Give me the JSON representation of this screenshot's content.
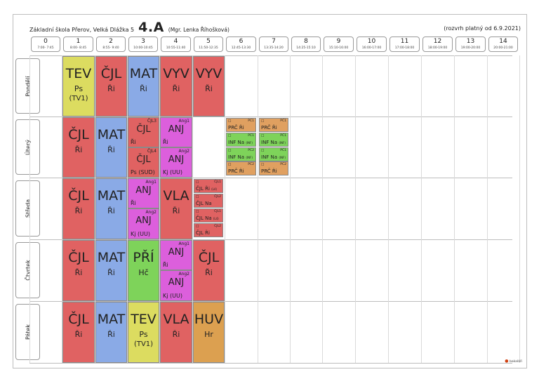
{
  "header": {
    "school": "Základní škola Přerov, Velká Dlážka 5",
    "class_name": "4.A",
    "teacher": "(Mgr. Lenka Říhošková)",
    "valid_from": "(rozvrh platný od 6.9.2021)"
  },
  "periods": [
    {
      "num": "0",
      "time": "7:00- 7:45"
    },
    {
      "num": "1",
      "time": "8:00- 8:45"
    },
    {
      "num": "2",
      "time": "8:55- 9:40"
    },
    {
      "num": "3",
      "time": "10:00-10:45"
    },
    {
      "num": "4",
      "time": "10:55-11:40"
    },
    {
      "num": "5",
      "time": "11:50-12:35"
    },
    {
      "num": "6",
      "time": "12:45-13:30"
    },
    {
      "num": "7",
      "time": "13:35-14:20"
    },
    {
      "num": "8",
      "time": "14:25-15:10"
    },
    {
      "num": "9",
      "time": "15:10-16:00"
    },
    {
      "num": "10",
      "time": "16:00-17:00"
    },
    {
      "num": "11",
      "time": "17:00-18:00"
    },
    {
      "num": "12",
      "time": "18:00-19:00"
    },
    {
      "num": "13",
      "time": "19:00-20:00"
    },
    {
      "num": "14",
      "time": "20:00-21:00"
    }
  ],
  "days": [
    "Pondělí",
    "Úterý",
    "Středa",
    "Čtvrtek",
    "Pátek"
  ],
  "colors": {
    "yellow": "#dcdc60",
    "red": "#e06262",
    "blue": "#8aaae6",
    "pink": "#dc5fdc",
    "green": "#7ed35a",
    "orange": "#e0a060",
    "tan": "#dca050"
  },
  "lessons": {
    "mon": [
      {
        "subject": "TEV",
        "teacher": "Ps",
        "room": "(TV1)"
      },
      {
        "subject": "ČJL",
        "teacher": "Ři"
      },
      {
        "subject": "MAT",
        "teacher": "Ři"
      },
      {
        "subject": "VYV",
        "teacher": "Ři"
      },
      {
        "subject": "VYV",
        "teacher": "Ři"
      }
    ],
    "tue": {
      "p1": {
        "subject": "ČJL",
        "teacher": "Ři"
      },
      "p2": {
        "subject": "MAT",
        "teacher": "Ři"
      },
      "p3a": {
        "group": "ČJL3",
        "subject": "ČJL",
        "teacher": "Ři"
      },
      "p3b": {
        "group": "ČJL4",
        "subject": "ČJL",
        "teacher": "Ps (SUD)"
      },
      "p4a": {
        "group": "Ang1",
        "subject": "ANJ",
        "teacher": "Ři"
      },
      "p4b": {
        "group": "Ang2",
        "subject": "ANJ",
        "teacher": "Kj (UU)"
      },
      "p6": [
        {
          "group": "PČ1",
          "text": "PRČ Ři",
          "note": ""
        },
        {
          "group": "PČ1",
          "text": "INF Na",
          "note": "(INF)"
        },
        {
          "group": "PČ2",
          "text": "INF Na",
          "note": "(INF)"
        },
        {
          "group": "PČ2",
          "text": "PRČ Ři",
          "note": ""
        }
      ],
      "p7": [
        {
          "group": "PČ1",
          "text": "PRČ Ři",
          "note": ""
        },
        {
          "group": "PČ1",
          "text": "INF Na",
          "note": "(INF)"
        },
        {
          "group": "PČ1",
          "text": "INF Na",
          "note": "(INF)"
        },
        {
          "group": "PČ2",
          "text": "PRČ Ři",
          "note": ""
        }
      ]
    },
    "wed": {
      "p1": {
        "subject": "ČJL",
        "teacher": "Ři"
      },
      "p2": {
        "subject": "MAT",
        "teacher": "Ři"
      },
      "p3a": {
        "group": "Ang1",
        "subject": "ANJ",
        "teacher": "Ři"
      },
      "p3b": {
        "group": "Ang2",
        "subject": "ANJ",
        "teacher": "Kj (UU)"
      },
      "p4": {
        "subject": "VLA",
        "teacher": "Ři"
      },
      "p5": [
        {
          "group": "ČJL1",
          "text": "ČJL Ři",
          "note": "(L4)"
        },
        {
          "group": "ČJL2",
          "text": "ČJL Na",
          "note": ""
        },
        {
          "group": "ČJL1",
          "text": "ČJL Na",
          "note": "(L4)"
        },
        {
          "group": "ČJL2",
          "text": "ČJL Ři",
          "note": ""
        }
      ]
    },
    "thu": {
      "p1": {
        "subject": "ČJL",
        "teacher": "Ři"
      },
      "p2": {
        "subject": "MAT",
        "teacher": "Ři"
      },
      "p3": {
        "subject": "PŘÍ",
        "teacher": "Hč"
      },
      "p4a": {
        "group": "Ang1",
        "subject": "ANJ",
        "teacher": "Ři"
      },
      "p4b": {
        "group": "Ang2",
        "subject": "ANJ",
        "teacher": "Kj (UU)"
      },
      "p5": {
        "subject": "ČJL",
        "teacher": "Ři"
      }
    },
    "fri": [
      {
        "subject": "ČJL",
        "teacher": "Ři"
      },
      {
        "subject": "MAT",
        "teacher": "Ři"
      },
      {
        "subject": "TEV",
        "teacher": "Ps",
        "room": "(TV1)"
      },
      {
        "subject": "VLA",
        "teacher": "Ři"
      },
      {
        "subject": "HUV",
        "teacher": "Hr"
      }
    ]
  },
  "footer_logo": "bakaláři"
}
